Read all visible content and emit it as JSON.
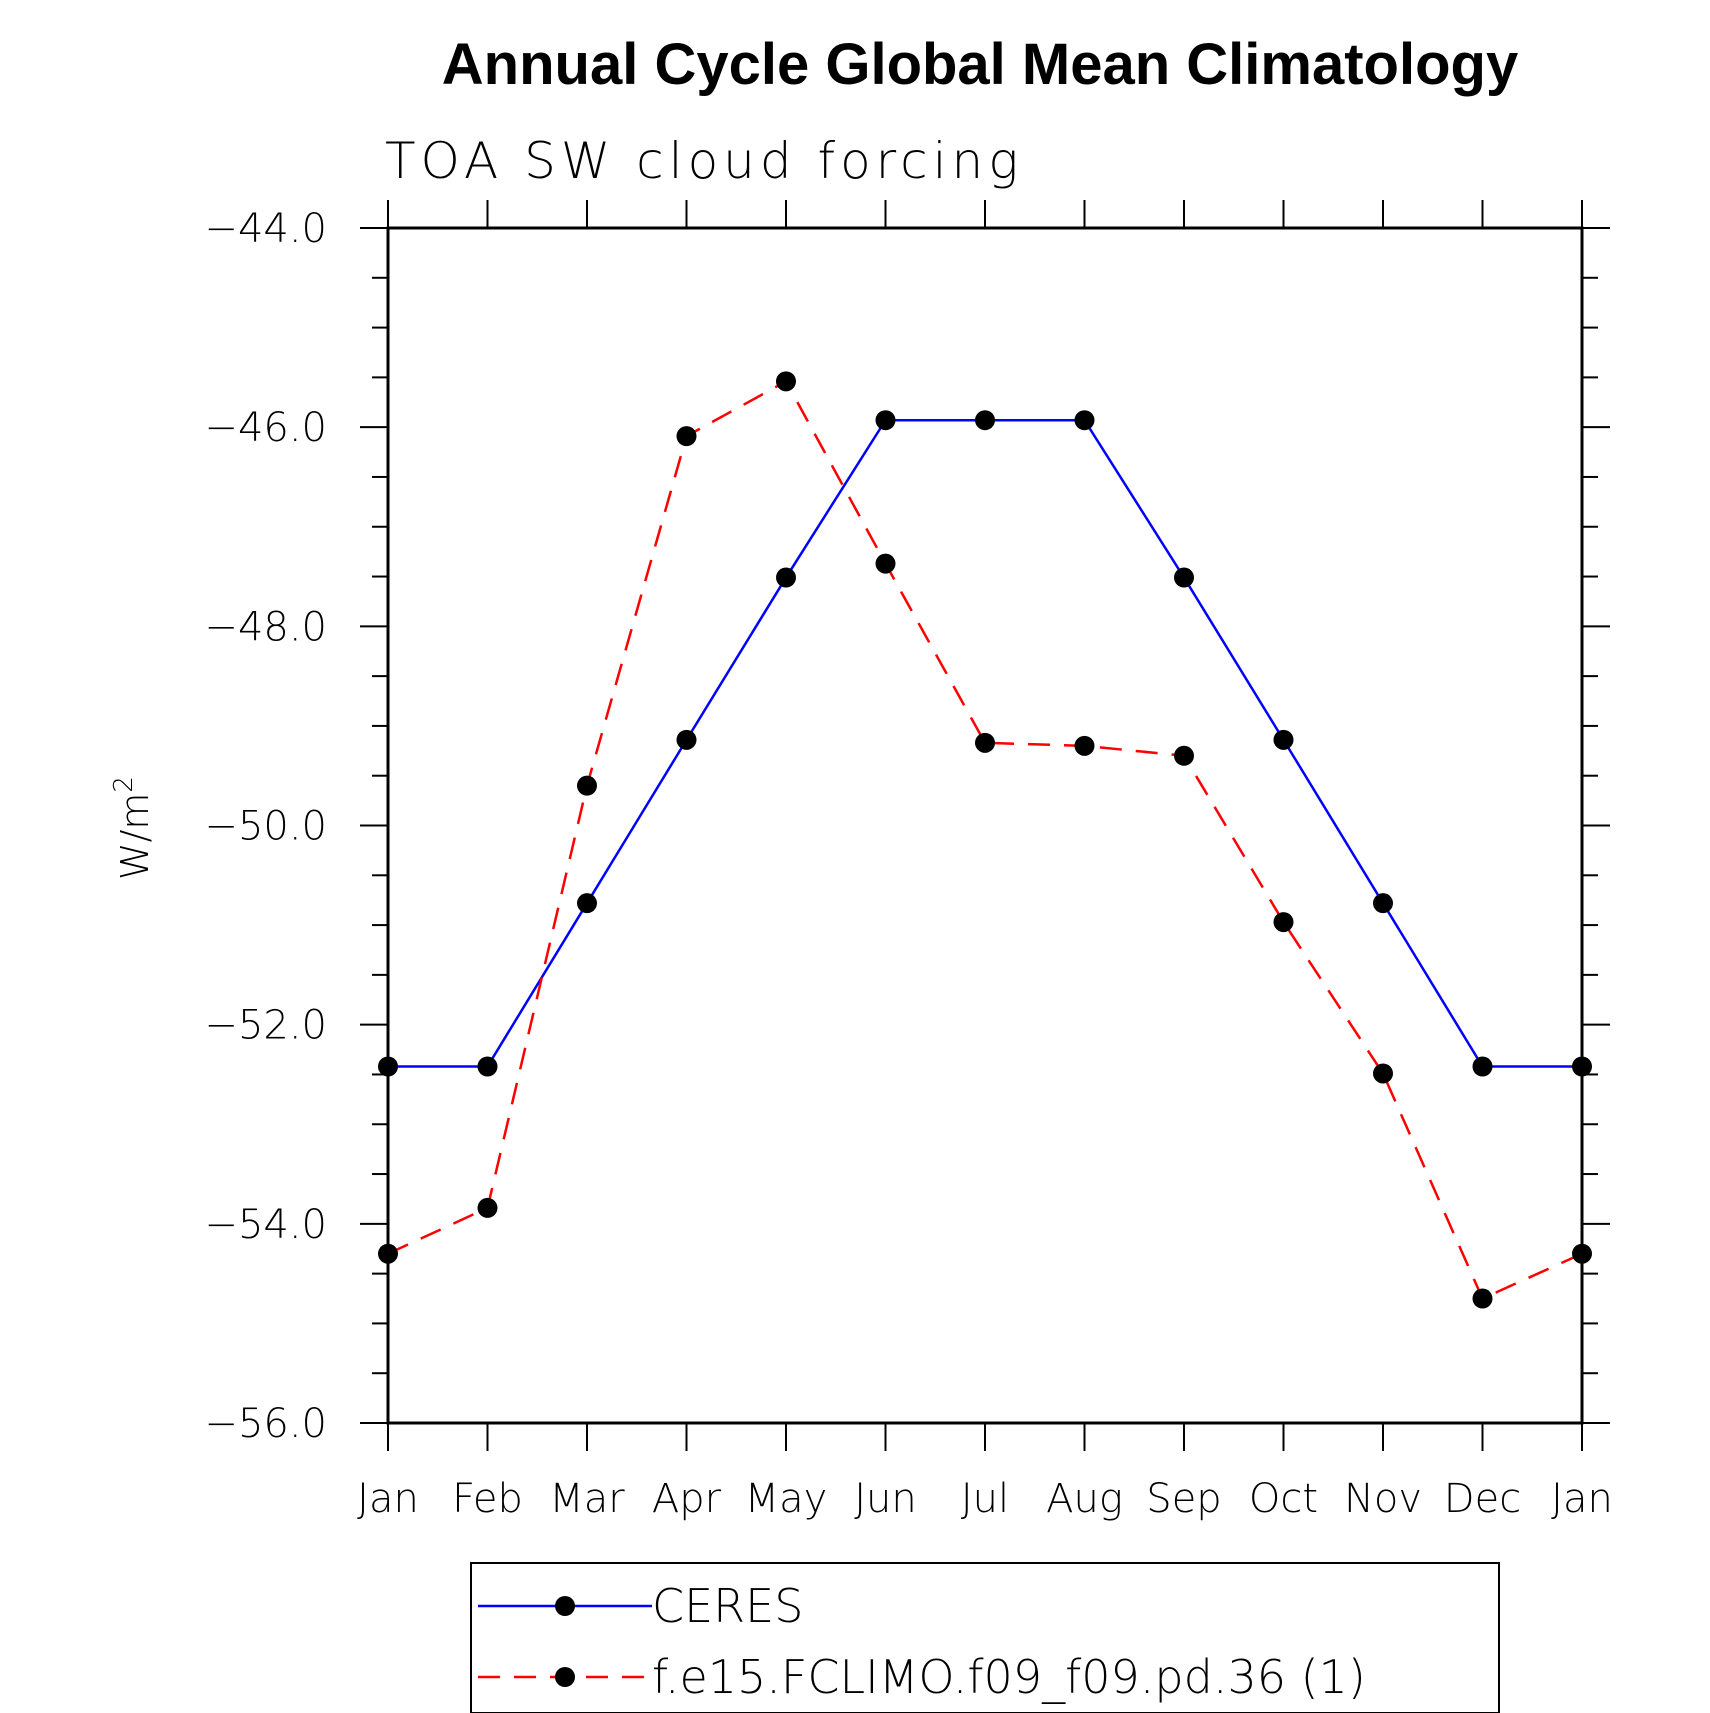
{
  "chart_data": {
    "type": "line",
    "title": "Annual Cycle Global Mean Climatology",
    "subtitle": "TOA SW cloud forcing",
    "ylabel_base": "W/m",
    "ylabel_sup": "2",
    "xlabel": "",
    "categories": [
      "Jan",
      "Feb",
      "Mar",
      "Apr",
      "May",
      "Jun",
      "Jul",
      "Aug",
      "Sep",
      "Oct",
      "Nov",
      "Dec",
      "Jan"
    ],
    "ylim": [
      -56.0,
      -44.0
    ],
    "yticks": [
      -44.0,
      -46.0,
      -48.0,
      -50.0,
      -52.0,
      -54.0,
      -56.0
    ],
    "ytick_labels": [
      "−44.0",
      "−46.0",
      "−48.0",
      "−50.0",
      "−52.0",
      "−54.0",
      "−56.0"
    ],
    "grid": false,
    "legend_position": "bottom",
    "series": [
      {
        "name": "CERES",
        "color": "#0000ff",
        "dashed": false,
        "values": [
          -52.42,
          -52.42,
          -50.78,
          -49.14,
          -47.51,
          -45.93,
          -45.93,
          -45.93,
          -47.51,
          -49.14,
          -50.78,
          -52.42,
          -52.42
        ]
      },
      {
        "name": "f.e15.FCLIMO.f09_f09.pd.36 (1)",
        "color": "#ff0000",
        "dashed": true,
        "values": [
          -54.3,
          -53.84,
          -49.6,
          -46.09,
          -45.54,
          -47.37,
          -49.17,
          -49.2,
          -49.3,
          -50.97,
          -52.49,
          -54.75,
          -54.3
        ]
      }
    ]
  }
}
